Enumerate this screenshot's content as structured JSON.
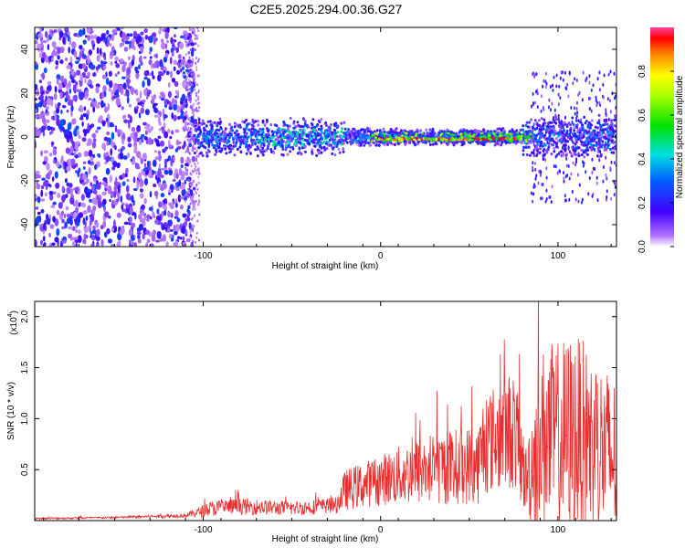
{
  "title": "C2E5.2025.294.00.36.G27",
  "chart_data": [
    {
      "type": "heatmap",
      "xlabel": "Height of straight line (km)",
      "ylabel": "Frequency (Hz)",
      "xlim": [
        -195,
        133
      ],
      "ylim": [
        -50,
        50
      ],
      "xticks": [
        -100,
        0,
        100
      ],
      "xtick_labels": [
        "-100",
        "0",
        "100"
      ],
      "yticks": [
        -40,
        -20,
        0,
        20,
        40
      ],
      "ytick_labels": [
        "-40",
        "-20",
        "0",
        "20",
        "40"
      ],
      "colorbar": {
        "label": "Normalized spectral amplitude",
        "range": [
          0,
          1
        ],
        "ticks": [
          0.0,
          0.2,
          0.4,
          0.6,
          0.8
        ],
        "tick_labels": [
          "0.0",
          "0.2",
          "0.4",
          "0.6",
          "0.8"
        ]
      },
      "features": [
        {
          "name": "broadband noise",
          "x_range": [
            -195,
            -105
          ],
          "freq_range": [
            -50,
            50
          ],
          "amplitude": 0.15
        },
        {
          "name": "signal band",
          "x_range": [
            -110,
            133
          ],
          "center_freq": 0,
          "amplitude": 0.35
        },
        {
          "name": "strong narrow line",
          "x_range": [
            0,
            80
          ],
          "center_freq": -1,
          "amplitude": 0.9
        }
      ]
    },
    {
      "type": "line",
      "xlabel": "Height of straight line (km)",
      "ylabel": "SNR (10 * v/v)",
      "y_scale_label": "(x10",
      "y_scale_exp": "4",
      "xlim": [
        -195,
        133
      ],
      "ylim": [
        0,
        2.15
      ],
      "xticks": [
        -100,
        0,
        100
      ],
      "xtick_labels": [
        "-100",
        "0",
        "100"
      ],
      "yticks": [
        0.5,
        1.0,
        1.5,
        2.0
      ],
      "ytick_labels": [
        "0.5",
        "1.0",
        "1.5",
        "2.0"
      ],
      "color": "#e83030",
      "envelope": {
        "x": [
          -195,
          -150,
          -110,
          -95,
          -80,
          -50,
          -25,
          -20,
          0,
          25,
          55,
          58,
          75,
          82,
          85,
          90,
          110,
          133
        ],
        "y_mean": [
          0.02,
          0.03,
          0.05,
          0.12,
          0.14,
          0.12,
          0.15,
          0.3,
          0.4,
          0.5,
          0.55,
          0.75,
          0.9,
          0.4,
          0.55,
          0.8,
          0.85,
          0.6
        ],
        "y_spread": [
          0.01,
          0.01,
          0.02,
          0.08,
          0.08,
          0.07,
          0.08,
          0.2,
          0.25,
          0.35,
          0.4,
          0.5,
          0.6,
          0.35,
          0.6,
          0.9,
          1.0,
          0.8
        ]
      }
    }
  ]
}
